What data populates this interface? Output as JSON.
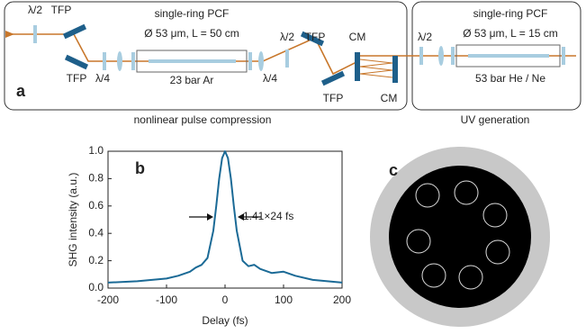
{
  "panel_a": {
    "label": "a",
    "compression": {
      "half_wave_1": "λ/2",
      "tfp_1": "TFP",
      "tfp_2": "TFP",
      "quarter_wave_1": "λ/4",
      "fiber_title": "single-ring PCF",
      "fiber_spec": "Ø 53 μm, L = 50 cm",
      "gas": "23 bar Ar",
      "quarter_wave_2": "λ/4",
      "half_wave_2": "λ/2",
      "tfp_3": "TFP",
      "tfp_4": "TFP",
      "cm_1": "CM",
      "cm_2": "CM",
      "caption": "nonlinear pulse compression"
    },
    "uv": {
      "half_wave": "λ/2",
      "fiber_title": "single-ring PCF",
      "fiber_spec": "Ø 53 μm, L = 15 cm",
      "gas": "53 bar He / Ne",
      "caption": "UV generation"
    }
  },
  "chart_data": {
    "type": "line",
    "label": "b",
    "xlabel": "Delay (fs)",
    "ylabel": "SHG intensity (a.u.)",
    "annotation": "1.41×24 fs",
    "x": [
      -200,
      -150,
      -100,
      -80,
      -60,
      -50,
      -40,
      -30,
      -20,
      -15,
      -10,
      -5,
      0,
      5,
      10,
      15,
      20,
      30,
      40,
      50,
      60,
      80,
      100,
      120,
      150,
      200
    ],
    "series": [
      {
        "color": "#1b6a96",
        "values": [
          0.04,
          0.05,
          0.07,
          0.09,
          0.12,
          0.15,
          0.17,
          0.22,
          0.42,
          0.6,
          0.8,
          0.95,
          1.0,
          0.95,
          0.8,
          0.6,
          0.42,
          0.2,
          0.16,
          0.17,
          0.14,
          0.11,
          0.12,
          0.09,
          0.06,
          0.04
        ]
      }
    ],
    "xlim": [
      -200,
      200
    ],
    "xticks": [
      -200,
      -100,
      0,
      100,
      200
    ],
    "ylim": [
      0,
      1
    ],
    "yticks": [
      {
        "value": 0,
        "label": "0.0"
      },
      0.2,
      0.4,
      0.6,
      0.8,
      {
        "value": 1,
        "label": "1.0"
      }
    ]
  },
  "panel_c": {
    "label": "c"
  }
}
